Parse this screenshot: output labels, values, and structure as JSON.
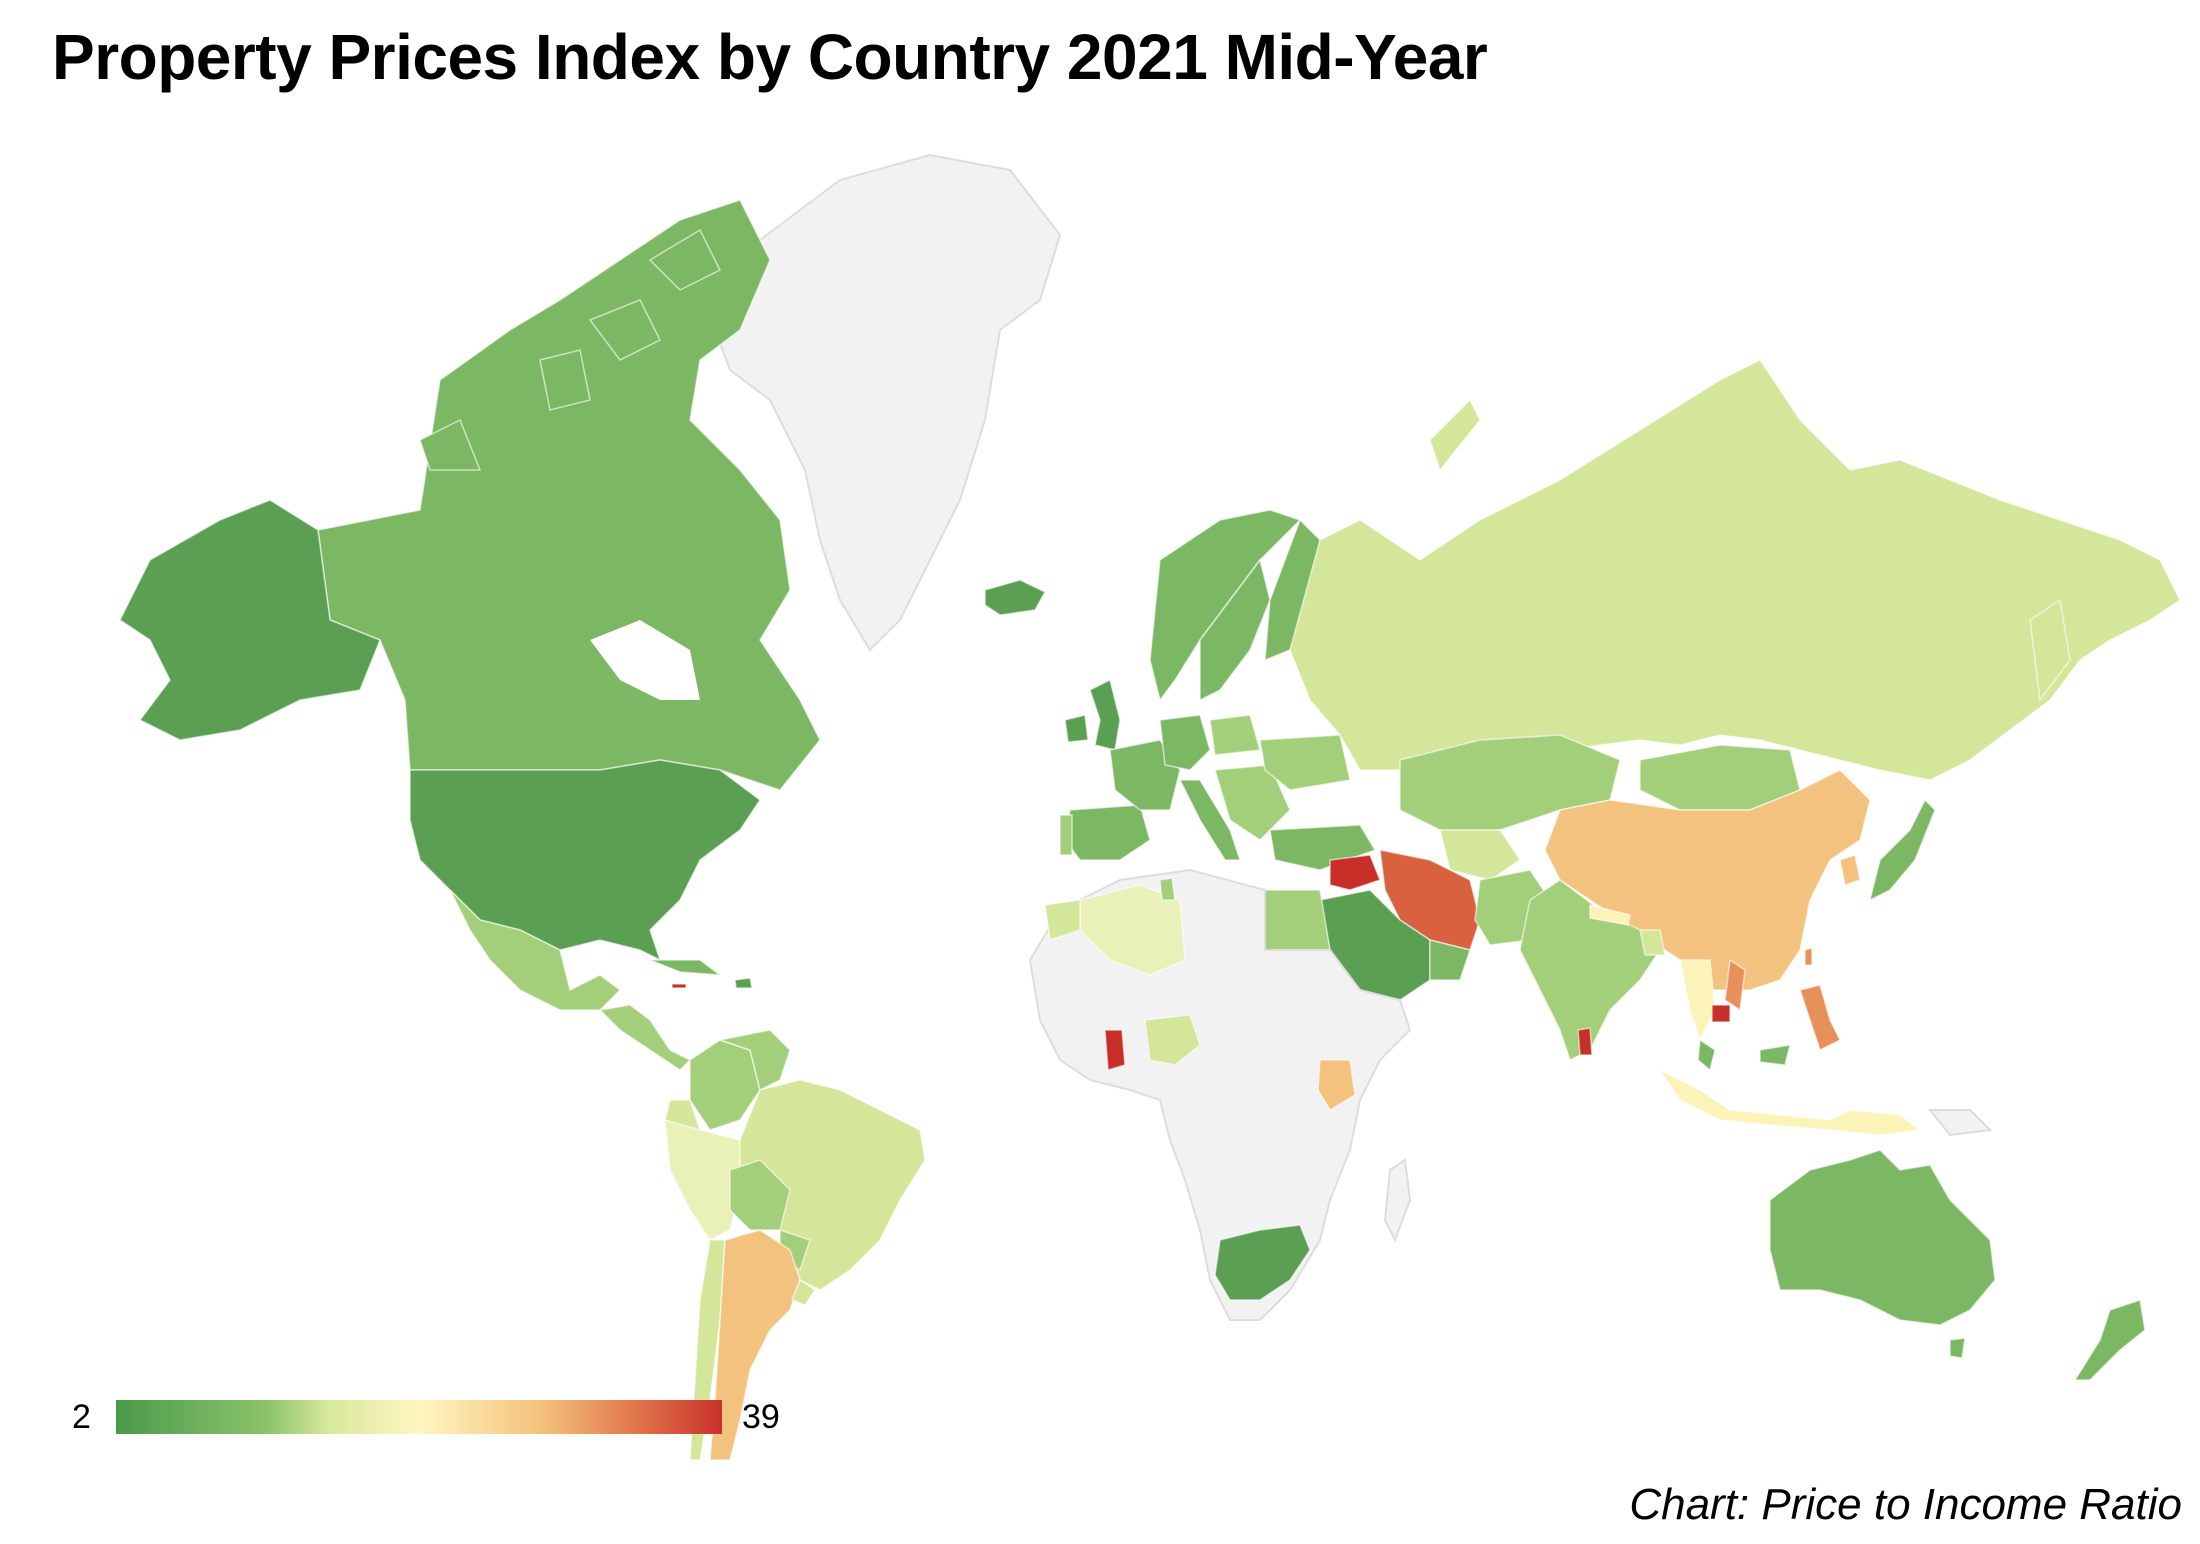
{
  "header": {
    "title": "Property Prices Index by Country 2021 Mid-Year"
  },
  "legend": {
    "min": "2",
    "max": "39",
    "colors": [
      "#4a9a4a",
      "#8cc36b",
      "#d7e89c",
      "#fff6c0",
      "#f4c27c",
      "#e27a4d",
      "#c8302a"
    ]
  },
  "footer": {
    "caption": "Chart: Price to Income Ratio"
  },
  "palette": {
    "nodata": "#f2f2f2",
    "dark_green": "#5a9f52",
    "mid_green": "#7cb864",
    "light_green": "#a3cf7a",
    "pale_green": "#d3e69a",
    "pale_yellow": "#fbf3b8",
    "light_orange": "#f3c27f",
    "orange": "#e8905a",
    "red_orange": "#d9613f",
    "red": "#c92f29"
  }
}
